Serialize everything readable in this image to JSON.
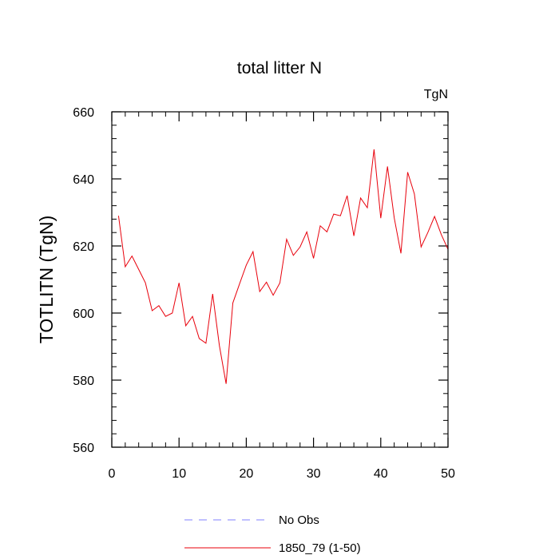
{
  "chart_data": {
    "type": "line",
    "title": "total litter N",
    "units_label": "TgN",
    "ylabel": "TOTLITN  (TgN)",
    "xlabel": "",
    "xlim": [
      0,
      50
    ],
    "ylim": [
      560,
      660
    ],
    "x_ticks": [
      0,
      10,
      20,
      30,
      40,
      50
    ],
    "y_ticks": [
      560,
      580,
      600,
      620,
      640,
      660
    ],
    "x_minor_step": 2,
    "y_minor_step": 4,
    "grid": false,
    "legend_position": "bottom",
    "series": [
      {
        "name": "1850_79 (1-50)",
        "color": "#e8000b",
        "style": "solid",
        "x": [
          1,
          2,
          3,
          4,
          5,
          6,
          7,
          8,
          9,
          10,
          11,
          12,
          13,
          14,
          15,
          16,
          17,
          18,
          19,
          20,
          21,
          22,
          23,
          24,
          25,
          26,
          27,
          28,
          29,
          30,
          31,
          32,
          33,
          34,
          35,
          36,
          37,
          38,
          39,
          40,
          41,
          42,
          43,
          44,
          45,
          46,
          47,
          48,
          49,
          50
        ],
        "values": [
          629,
          613.8,
          617,
          613,
          609,
          600.7,
          602.2,
          599,
          600,
          609,
          596.2,
          599,
          592.4,
          591,
          605.7,
          590.3,
          578.9,
          603,
          608.7,
          614.3,
          618.3,
          606.4,
          609.2,
          605.3,
          609,
          622,
          617.2,
          619.7,
          624.2,
          616.3,
          626,
          624.2,
          629.5,
          629,
          635,
          623,
          634.3,
          631.4,
          648.8,
          628.3,
          643.7,
          628.4,
          617.8,
          642,
          635.5,
          619.7,
          624,
          628.8,
          623.4,
          619
        ]
      },
      {
        "name": "No Obs",
        "color": "#8080ff",
        "style": "dashed",
        "x": [],
        "values": []
      }
    ]
  }
}
